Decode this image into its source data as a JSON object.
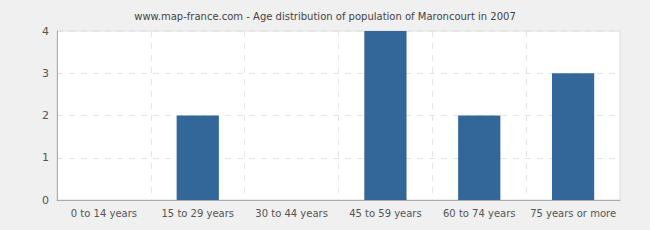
{
  "chart_data": {
    "type": "bar",
    "title": "www.map-france.com - Age distribution of population of Maroncourt in 2007",
    "categories": [
      "0 to 14 years",
      "15 to 29 years",
      "30 to 44 years",
      "45 to 59 years",
      "60 to 74 years",
      "75 years or more"
    ],
    "values": [
      0,
      2,
      0,
      4,
      2,
      3
    ],
    "color": "#336699",
    "ylim": [
      0,
      4
    ],
    "yticks": [
      0,
      1,
      2,
      3,
      4
    ],
    "grid": true
  }
}
